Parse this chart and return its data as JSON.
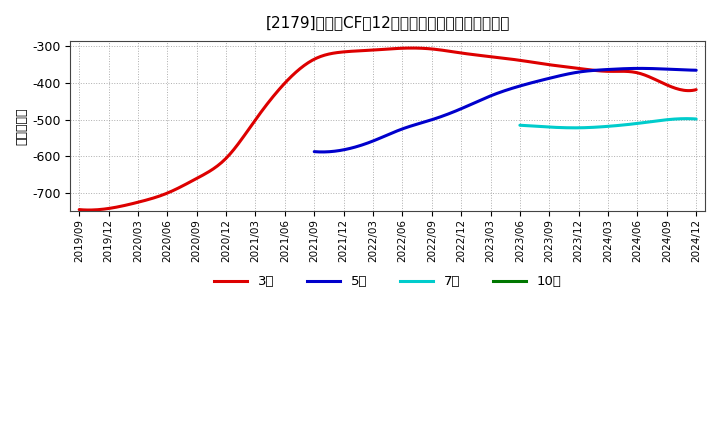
{
  "title": "[2179]　投賄CFの12か月移動合計の平均値の推移",
  "ylabel": "（百万円）",
  "ylim": [
    -750,
    -285
  ],
  "yticks": [
    -700,
    -600,
    -500,
    -400,
    -300
  ],
  "background_color": "#ffffff",
  "grid_color": "#999999",
  "series": {
    "3year": {
      "color": "#dd0000",
      "label": "3年",
      "points": [
        [
          "2019/09",
          -745
        ],
        [
          "2019/12",
          -742
        ],
        [
          "2020/03",
          -725
        ],
        [
          "2020/06",
          -700
        ],
        [
          "2020/09",
          -660
        ],
        [
          "2020/12",
          -605
        ],
        [
          "2021/03",
          -500
        ],
        [
          "2021/06",
          -400
        ],
        [
          "2021/09",
          -335
        ],
        [
          "2021/12",
          -315
        ],
        [
          "2022/03",
          -310
        ],
        [
          "2022/06",
          -305
        ],
        [
          "2022/09",
          -307
        ],
        [
          "2022/12",
          -318
        ],
        [
          "2023/03",
          -328
        ],
        [
          "2023/06",
          -338
        ],
        [
          "2023/09",
          -350
        ],
        [
          "2023/12",
          -360
        ],
        [
          "2024/03",
          -368
        ],
        [
          "2024/06",
          -372
        ],
        [
          "2024/09",
          -405
        ],
        [
          "2024/12",
          -418
        ]
      ]
    },
    "5year": {
      "color": "#0000cc",
      "label": "5年",
      "points": [
        [
          "2021/09",
          -587
        ],
        [
          "2021/12",
          -582
        ],
        [
          "2022/03",
          -558
        ],
        [
          "2022/06",
          -525
        ],
        [
          "2022/09",
          -500
        ],
        [
          "2022/12",
          -470
        ],
        [
          "2023/03",
          -435
        ],
        [
          "2023/06",
          -408
        ],
        [
          "2023/09",
          -387
        ],
        [
          "2023/12",
          -370
        ],
        [
          "2024/03",
          -363
        ],
        [
          "2024/06",
          -360
        ],
        [
          "2024/09",
          -362
        ],
        [
          "2024/12",
          -365
        ]
      ]
    },
    "7year": {
      "color": "#00cccc",
      "label": "7年",
      "points": [
        [
          "2023/06",
          -515
        ],
        [
          "2023/09",
          -520
        ],
        [
          "2023/12",
          -522
        ],
        [
          "2024/03",
          -518
        ],
        [
          "2024/06",
          -510
        ],
        [
          "2024/09",
          -500
        ],
        [
          "2024/12",
          -498
        ]
      ]
    },
    "10year": {
      "color": "#007700",
      "label": "10年",
      "points": []
    }
  },
  "legend_labels": [
    "3年",
    "5年",
    "7年",
    "10年"
  ],
  "legend_colors": [
    "#dd0000",
    "#0000cc",
    "#00cccc",
    "#007700"
  ],
  "x_tick_labels": [
    "2019/09",
    "2019/12",
    "2020/03",
    "2020/06",
    "2020/09",
    "2020/12",
    "2021/03",
    "2021/06",
    "2021/09",
    "2021/12",
    "2022/03",
    "2022/06",
    "2022/09",
    "2022/12",
    "2023/03",
    "2023/06",
    "2023/09",
    "2023/12",
    "2024/03",
    "2024/06",
    "2024/09",
    "2024/12"
  ]
}
